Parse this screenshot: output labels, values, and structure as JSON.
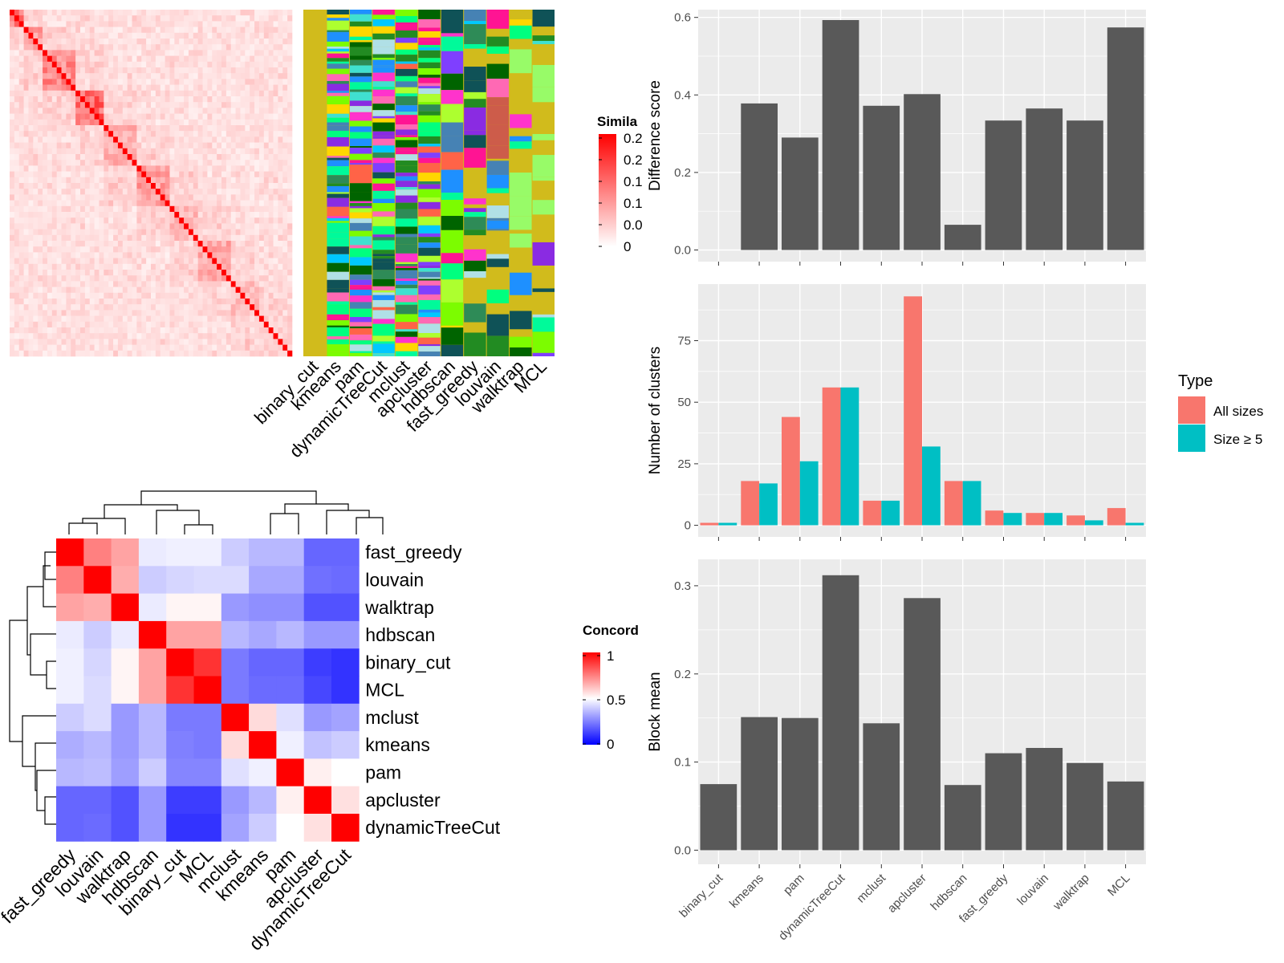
{
  "colors": {
    "panel_bg": "#ebebeb",
    "grid": "#ffffff",
    "bar_dark": "#595959",
    "all_sizes": "#f8766d",
    "size_ge5": "#00bfc4",
    "sim_high": "#ff0000",
    "conc_high": "#ff0000",
    "conc_mid": "#ffffff",
    "conc_low": "#0000ff",
    "annot_bg": "#d1bb1c"
  },
  "chart_data": [
    {
      "id": "similarity-heatmap",
      "type": "heatmap",
      "legend_title": "Simila",
      "legend_ticks": [
        "0.2",
        "0.2",
        "0.1",
        "0.1",
        "0.0",
        "0"
      ],
      "color_low": "#ffffff",
      "color_high": "#ff0000",
      "column_labels": [
        "binary_cut",
        "kmeans",
        "pam",
        "dynamicTreeCut",
        "mclust",
        "apcluster",
        "hdbscan",
        "fast_greedy",
        "louvain",
        "walktrap",
        "MCL"
      ]
    },
    {
      "id": "difference-score",
      "type": "bar",
      "categories": [
        "binary_cut",
        "kmeans",
        "pam",
        "dynamicTreeCut",
        "mclust",
        "apcluster",
        "hdbscan",
        "fast_greedy",
        "louvain",
        "walktrap",
        "MCL"
      ],
      "values": [
        0.0,
        0.378,
        0.29,
        0.593,
        0.372,
        0.402,
        0.065,
        0.334,
        0.365,
        0.334,
        0.574
      ],
      "ylabel": "Difference score",
      "yticks": [
        0.0,
        0.2,
        0.4,
        0.6
      ],
      "ytick_labels": [
        "0.0",
        "0.2",
        "0.4",
        "0.6"
      ],
      "ylim": [
        -0.03,
        0.62
      ]
    },
    {
      "id": "number-of-clusters",
      "type": "bar",
      "categories": [
        "binary_cut",
        "kmeans",
        "pam",
        "dynamicTreeCut",
        "mclust",
        "apcluster",
        "hdbscan",
        "fast_greedy",
        "louvain",
        "walktrap",
        "MCL"
      ],
      "series": [
        {
          "name": "All sizes",
          "values": [
            1,
            18,
            44,
            56,
            10,
            93,
            18,
            6,
            5,
            4,
            7
          ]
        },
        {
          "name": "Size ≥ 5",
          "values": [
            1,
            17,
            26,
            56,
            10,
            32,
            18,
            5,
            5,
            2,
            1
          ]
        }
      ],
      "ylabel": "Number of clusters",
      "yticks": [
        0,
        25,
        50,
        75
      ],
      "ytick_labels": [
        "0",
        "25",
        "50",
        "75"
      ],
      "ylim": [
        -4.7,
        98
      ],
      "legend_title": "Type",
      "legend_position": "right"
    },
    {
      "id": "block-mean",
      "type": "bar",
      "categories": [
        "binary_cut",
        "kmeans",
        "pam",
        "dynamicTreeCut",
        "mclust",
        "apcluster",
        "hdbscan",
        "fast_greedy",
        "louvain",
        "walktrap",
        "MCL"
      ],
      "values": [
        0.075,
        0.151,
        0.15,
        0.312,
        0.144,
        0.286,
        0.074,
        0.11,
        0.116,
        0.099,
        0.078
      ],
      "ylabel": "Block mean",
      "yticks": [
        0.0,
        0.1,
        0.2,
        0.3
      ],
      "ytick_labels": [
        "0.0",
        "0.1",
        "0.2",
        "0.3"
      ],
      "ylim": [
        -0.016,
        0.33
      ]
    },
    {
      "id": "concordance-heatmap",
      "type": "heatmap",
      "legend_title": "Concord",
      "legend_ticks": [
        "1",
        "0.5",
        "0"
      ],
      "labels": [
        "fast_greedy",
        "louvain",
        "walktrap",
        "hdbscan",
        "binary_cut",
        "MCL",
        "mclust",
        "kmeans",
        "pam",
        "apcluster",
        "dynamicTreeCut"
      ],
      "matrix": [
        [
          1.0,
          0.75,
          0.68,
          0.46,
          0.47,
          0.47,
          0.4,
          0.36,
          0.36,
          0.2,
          0.2
        ],
        [
          0.75,
          1.0,
          0.66,
          0.4,
          0.42,
          0.43,
          0.43,
          0.33,
          0.33,
          0.22,
          0.21
        ],
        [
          0.68,
          0.66,
          1.0,
          0.46,
          0.52,
          0.52,
          0.3,
          0.28,
          0.28,
          0.16,
          0.16
        ],
        [
          0.46,
          0.4,
          0.46,
          1.0,
          0.68,
          0.68,
          0.36,
          0.33,
          0.36,
          0.3,
          0.3
        ],
        [
          0.47,
          0.42,
          0.52,
          0.68,
          1.0,
          0.9,
          0.24,
          0.2,
          0.2,
          0.12,
          0.1
        ],
        [
          0.47,
          0.43,
          0.52,
          0.68,
          0.9,
          1.0,
          0.24,
          0.21,
          0.21,
          0.14,
          0.1
        ],
        [
          0.4,
          0.43,
          0.3,
          0.36,
          0.24,
          0.24,
          1.0,
          0.57,
          0.44,
          0.3,
          0.32
        ],
        [
          0.34,
          0.36,
          0.3,
          0.36,
          0.25,
          0.24,
          0.57,
          1.0,
          0.47,
          0.38,
          0.4
        ],
        [
          0.36,
          0.37,
          0.31,
          0.4,
          0.26,
          0.26,
          0.44,
          0.47,
          1.0,
          0.53,
          0.5
        ],
        [
          0.2,
          0.2,
          0.16,
          0.3,
          0.12,
          0.12,
          0.3,
          0.36,
          0.53,
          1.0,
          0.56
        ],
        [
          0.2,
          0.21,
          0.16,
          0.3,
          0.1,
          0.1,
          0.32,
          0.4,
          0.5,
          0.56,
          1.0
        ]
      ]
    }
  ]
}
